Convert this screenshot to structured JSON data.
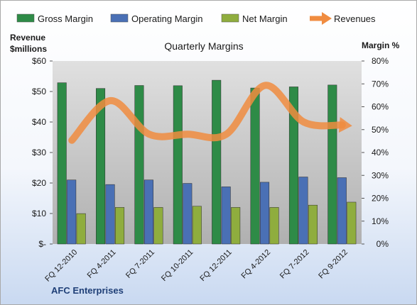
{
  "chart_data": {
    "type": "bar",
    "title": "Quarterly Margins",
    "categories": [
      "FQ 12-2010",
      "FQ 4-2011",
      "FQ 7-2011",
      "FQ 10-2011",
      "FQ 12-2011",
      "FQ 4-2012",
      "FQ 7-2012",
      "FQ 9-2012"
    ],
    "series": [
      {
        "name": "Gross Margin",
        "type": "bar",
        "axis": "right",
        "color": "#2e8b47",
        "values": [
          70.5,
          68.0,
          69.3,
          69.2,
          71.6,
          68.2,
          68.7,
          69.5
        ]
      },
      {
        "name": "Operating Margin",
        "type": "bar",
        "axis": "right",
        "color": "#4a70b5",
        "values": [
          28.0,
          26.0,
          28.0,
          26.5,
          25.0,
          27.0,
          29.3,
          29.0
        ]
      },
      {
        "name": "Net Margin",
        "type": "bar",
        "axis": "right",
        "color": "#8fad3e",
        "values": [
          13.3,
          16.0,
          16.0,
          16.5,
          16.0,
          16.0,
          17.0,
          18.3
        ]
      },
      {
        "name": "Revenues",
        "type": "line",
        "axis": "left",
        "color": "#f08c40",
        "values": [
          34,
          47,
          36,
          36,
          36,
          52,
          40,
          39
        ]
      }
    ],
    "left_axis": {
      "label": "Revenue $millions",
      "label_lines": [
        "Revenue",
        "$millions"
      ],
      "ticks": [
        "$-",
        "$10",
        "$20",
        "$30",
        "$40",
        "$50",
        "$60"
      ],
      "range": [
        0,
        60
      ]
    },
    "right_axis": {
      "label": "Margin %",
      "ticks": [
        "0%",
        "10%",
        "20%",
        "30%",
        "40%",
        "50%",
        "60%",
        "70%",
        "80%"
      ],
      "range": [
        0,
        80
      ]
    },
    "grid": false,
    "legend_position": "top"
  },
  "company": "AFC Enterprises"
}
